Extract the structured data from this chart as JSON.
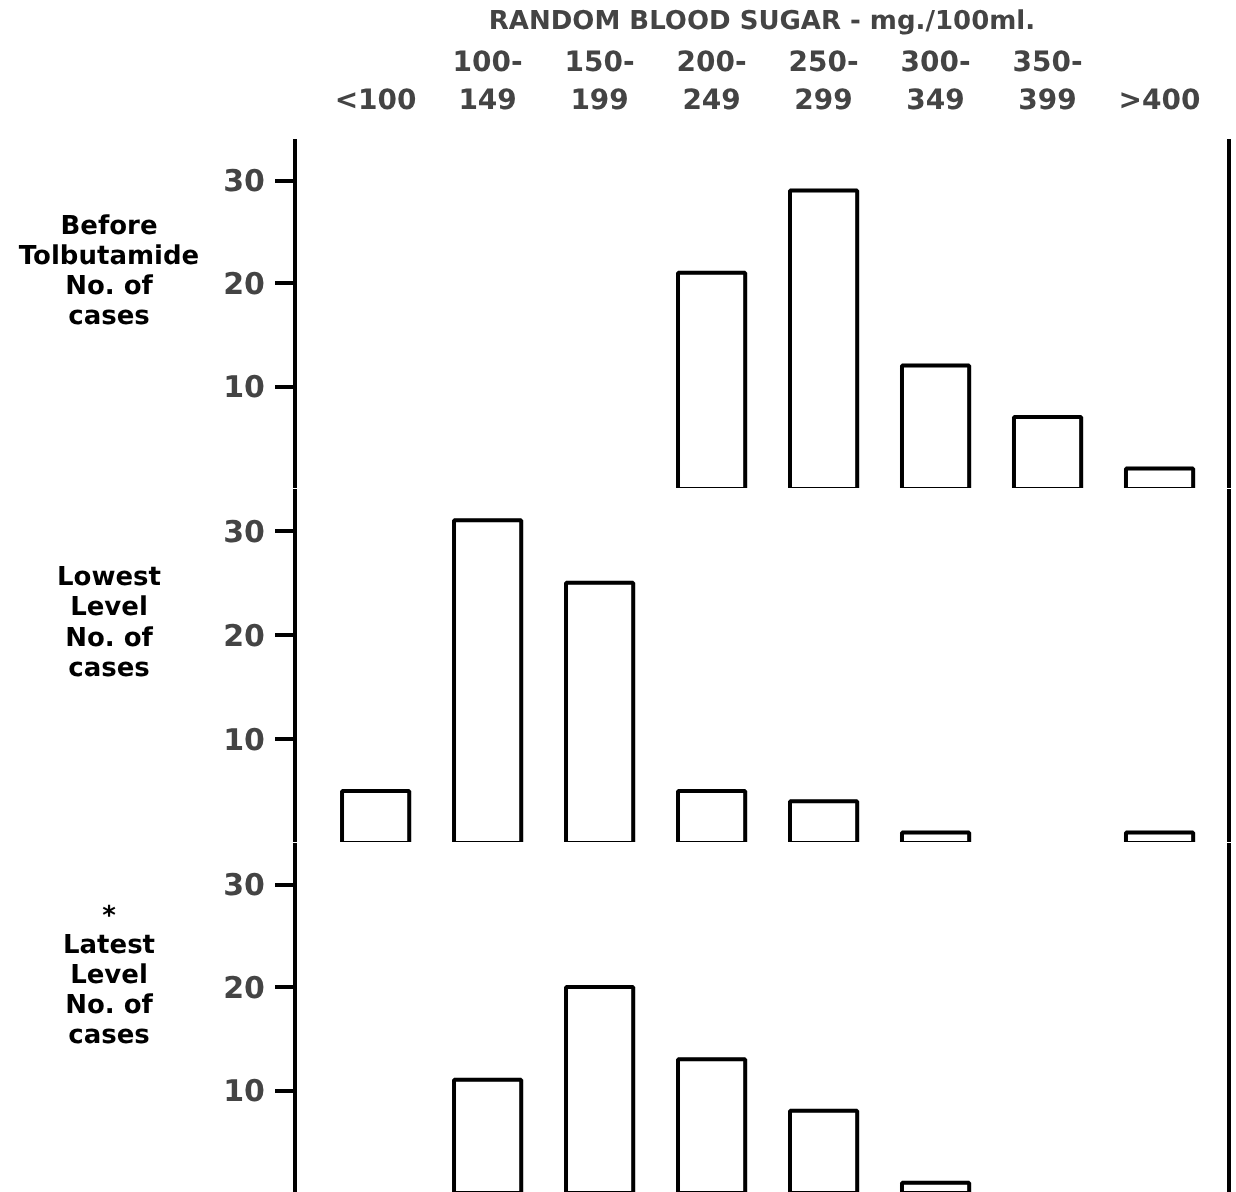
{
  "chart_data": [
    {
      "type": "bar",
      "xlabel": "RANDOM BLOOD SUGAR - mg./100ml.",
      "ylabel": "Before\nTolbutamide\nNo. of\ncases",
      "categories": [
        "<100",
        "100-\n149",
        "150-\n199",
        "200-\n249",
        "250-\n299",
        "300-\n349",
        "350-\n399",
        ">400"
      ],
      "values": [
        null,
        null,
        null,
        21,
        29,
        12,
        7,
        2
      ],
      "color": "#ffffff",
      "ylim": [
        0,
        34
      ],
      "yticks": [
        10,
        20,
        30
      ],
      "grid": false
    },
    {
      "type": "bar",
      "ylabel": "Lowest\nLevel\nNo. of\ncases",
      "categories": [
        null,
        null,
        null,
        null,
        null,
        null,
        null,
        null
      ],
      "values": [
        5,
        31,
        25,
        5,
        4,
        1,
        null,
        1
      ],
      "color": "#ffffff",
      "ylim": [
        0,
        34
      ],
      "yticks": [
        10,
        20,
        30
      ],
      "tick_labels": "y",
      "grid": false
    },
    {
      "type": "bar",
      "ylabel": "*\nLatest\nLevel\nNo. of\ncases",
      "categories": [
        null,
        null,
        null,
        null,
        null,
        null,
        null,
        null
      ],
      "values": [
        null,
        11,
        20,
        13,
        8,
        1,
        null,
        null
      ],
      "color": "#ffffff",
      "ylim": [
        0,
        34
      ],
      "yticks": [
        10,
        20,
        30
      ],
      "tick_labels": "y",
      "grid": false
    }
  ]
}
